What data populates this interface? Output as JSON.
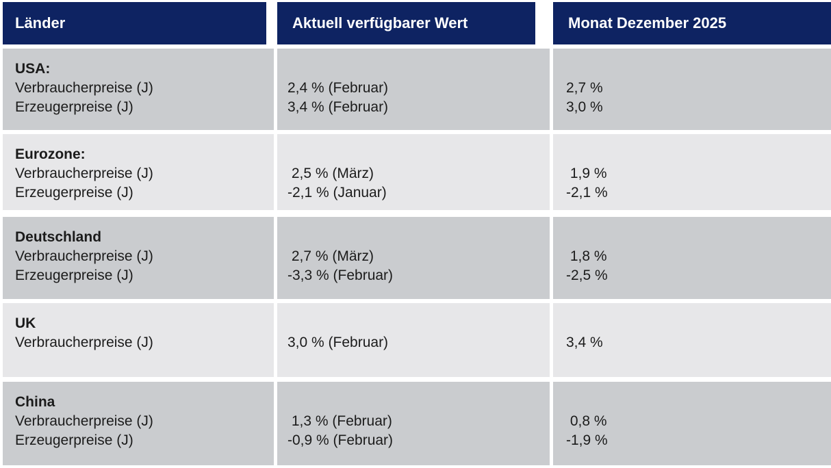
{
  "chart_data": {
    "type": "table",
    "columns": [
      "Länder",
      "Aktuell verfügbarer Wert",
      "Monat Dezember 2025"
    ],
    "rows": [
      {
        "country": "USA:",
        "metrics": [
          {
            "label": "Verbraucherpreise (J)",
            "current": "2,4 % (Februar)",
            "december": "2,7 %"
          },
          {
            "label": "Erzeugerpreise (J)",
            "current": "3,4 % (Februar)",
            "december": "3,0 %"
          }
        ]
      },
      {
        "country": "Eurozone:",
        "metrics": [
          {
            "label": "Verbraucherpreise (J)",
            "current": " 2,5 % (März)",
            "december": " 1,9 %"
          },
          {
            "label": "Erzeugerpreise (J)",
            "current": "-2,1 % (Januar)",
            "december": "-2,1 %"
          }
        ]
      },
      {
        "country": "Deutschland",
        "metrics": [
          {
            "label": "Verbraucherpreise (J)",
            "current": " 2,7 % (März)",
            "december": " 1,8 %"
          },
          {
            "label": "Erzeugerpreise (J)",
            "current": "-3,3 % (Februar)",
            "december": "-2,5 %"
          }
        ]
      },
      {
        "country": "UK",
        "metrics": [
          {
            "label": "Verbraucherpreise (J)",
            "current": "3,0 % (Februar)",
            "december": "3,4 %"
          }
        ]
      },
      {
        "country": "China",
        "metrics": [
          {
            "label": "Verbraucherpreise (J)",
            "current": " 1,3 % (Februar)",
            "december": " 0,8 %"
          },
          {
            "label": "Erzeugerpreise (J)",
            "current": "-0,9 % (Februar)",
            "december": "-1,9 %"
          }
        ]
      }
    ]
  },
  "colors": {
    "header_bg": "#0e2362",
    "header_text": "#ffffff",
    "row_dark_bg": "#cacccf",
    "row_light_bg": "#e7e7e9",
    "body_text": "#1b1b1b",
    "gap": "#ffffff"
  }
}
